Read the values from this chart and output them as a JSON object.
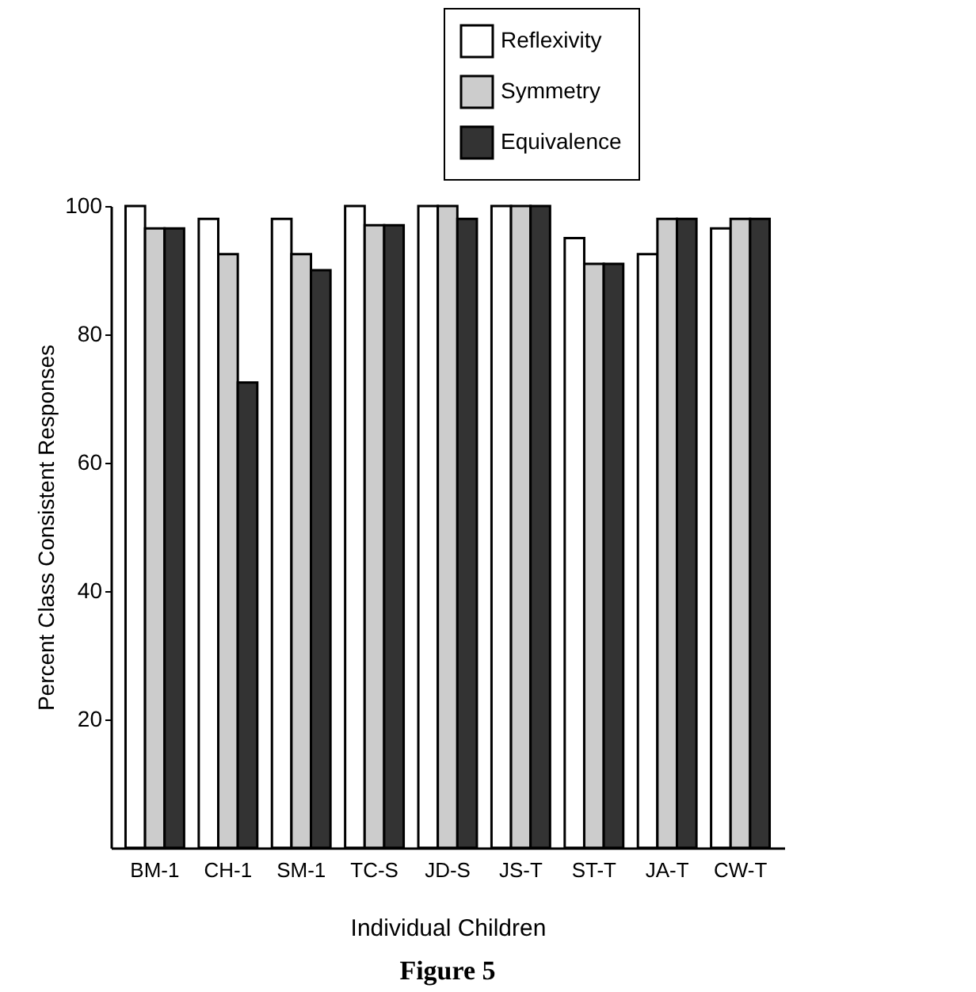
{
  "chart_data": {
    "type": "bar",
    "xlabel": "Individual Children",
    "ylabel": "Percent Class Consistent Responses",
    "categories": [
      "BM-1",
      "CH-1",
      "SM-1",
      "TC-S",
      "JD-S",
      "JS-T",
      "ST-T",
      "JA-T",
      "CW-T"
    ],
    "series": [
      {
        "name": "Reflexivity",
        "color": "#ffffff",
        "values": [
          100,
          98,
          98,
          100,
          100,
          100,
          95,
          92.5,
          96.5
        ]
      },
      {
        "name": "Symmetry",
        "color": "#cccccc",
        "values": [
          96.5,
          92.5,
          92.5,
          97,
          100,
          100,
          91,
          98,
          98
        ]
      },
      {
        "name": "Equivalence",
        "color": "#333333",
        "values": [
          96.5,
          72.5,
          90,
          97,
          98,
          100,
          91,
          98,
          98
        ]
      }
    ],
    "ylim": [
      0,
      100
    ],
    "yticks": [
      20,
      40,
      60,
      80,
      100
    ],
    "grid": false,
    "legend": "top right",
    "annotations": [
      "Figure 5"
    ]
  }
}
